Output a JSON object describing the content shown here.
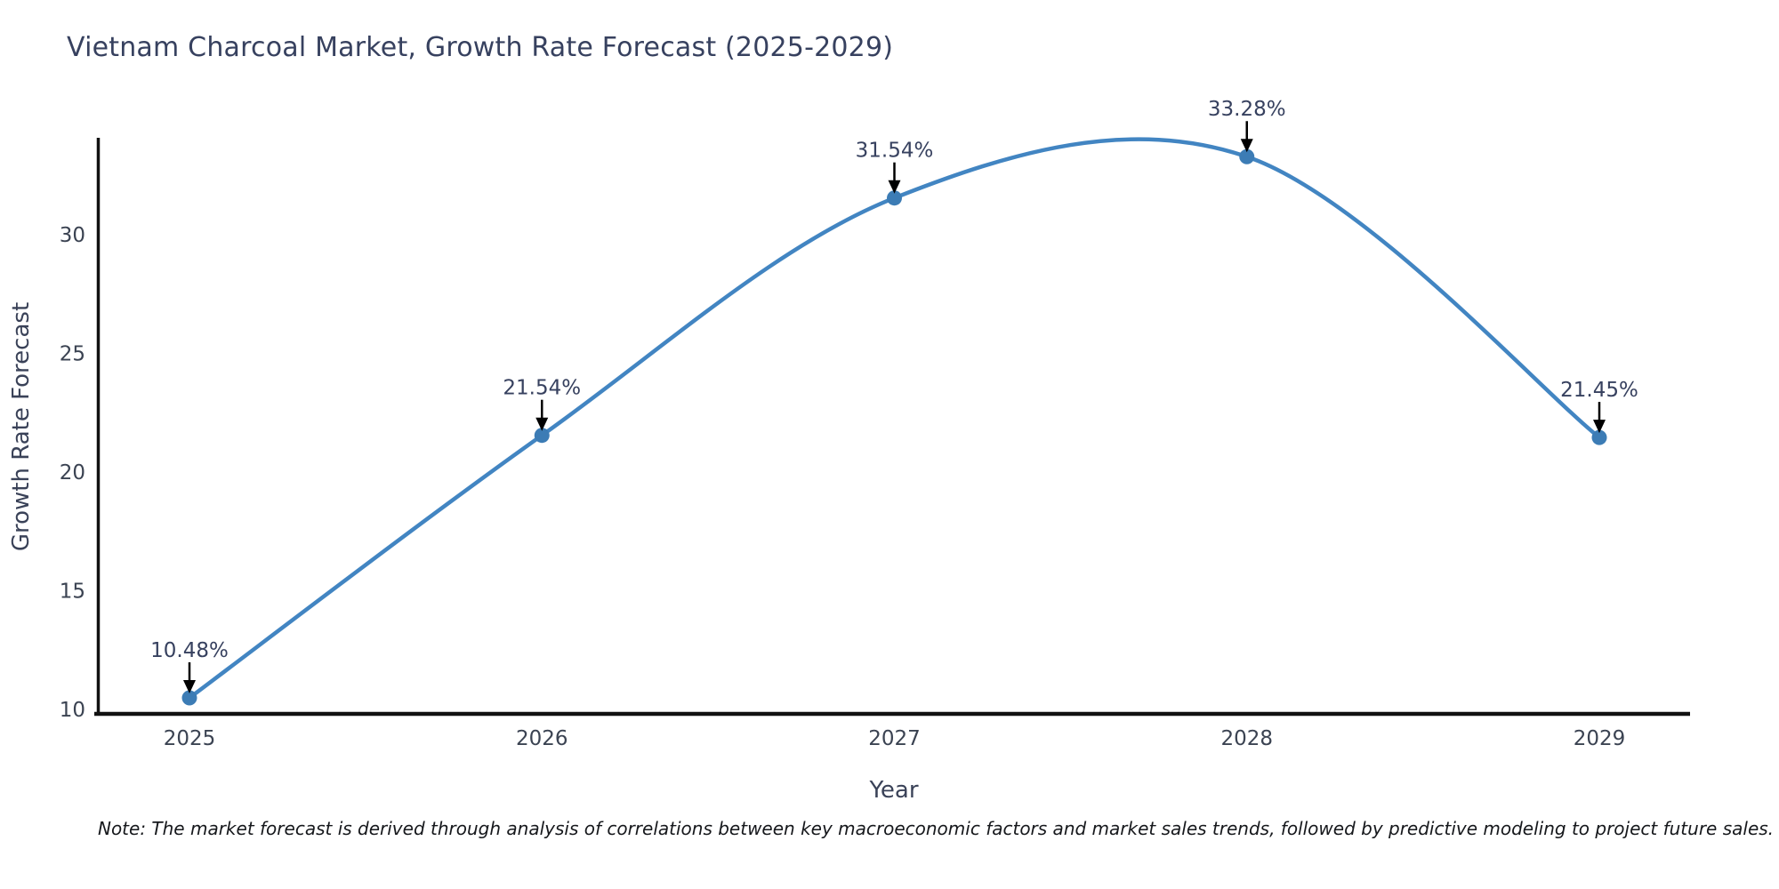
{
  "note": "Note: The market forecast is derived through analysis of correlations between key macroeconomic factors and market sales trends, followed by predictive modeling to project future sales.",
  "chart_data": {
    "type": "line",
    "title": "Vietnam Charcoal Market, Growth Rate Forecast (2025-2029)",
    "x": [
      2025,
      2026,
      2027,
      2028,
      2029
    ],
    "xtick_labels": [
      "2025",
      "2026",
      "2027",
      "2028",
      "2029"
    ],
    "series": [
      {
        "name": "Growth Rate Forecast",
        "values": [
          10.48,
          21.54,
          31.54,
          33.28,
          21.45
        ]
      }
    ],
    "point_labels": [
      "10.48%",
      "21.54%",
      "31.54%",
      "33.28%",
      "21.45%"
    ],
    "xlabel": "Year",
    "ylabel": "Growth Rate Forecast",
    "yticks": [
      10,
      15,
      20,
      25,
      30
    ],
    "ylim": [
      10,
      34
    ],
    "line_shape": "spline",
    "grid": false,
    "legend": "none",
    "colors": {
      "line": "#4285c2",
      "marker": "#3c7cb5",
      "arrow": "#000000",
      "axis": "#111111",
      "tick_text": "#3b4352",
      "title_text": "#37415f"
    }
  }
}
